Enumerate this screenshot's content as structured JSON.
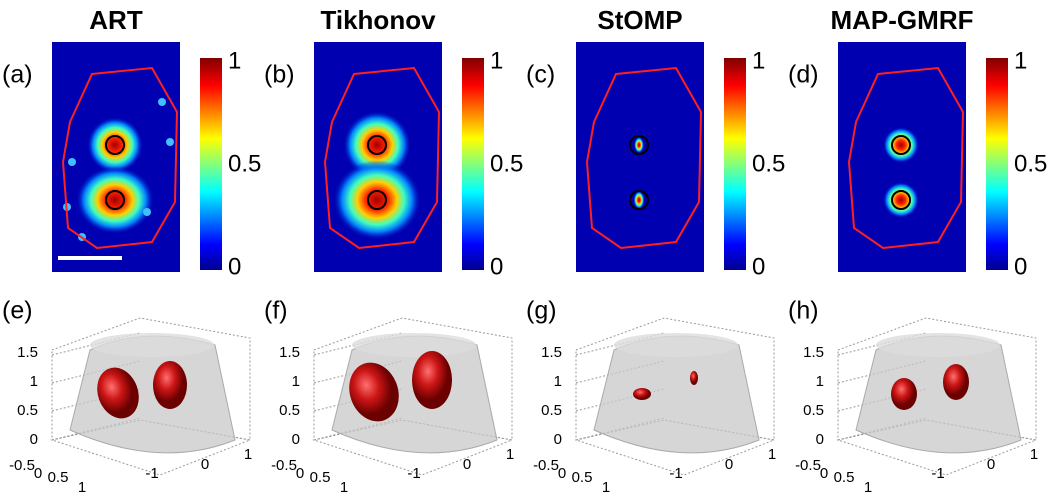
{
  "panels": [
    {
      "title": "ART",
      "image_label": "(a)",
      "surface_label": "(e)"
    },
    {
      "title": "Tikhonov",
      "image_label": "(b)",
      "surface_label": "(f)"
    },
    {
      "title": "StOMP",
      "image_label": "(c)",
      "surface_label": "(g)"
    },
    {
      "title": "MAP-GMRF",
      "image_label": "(d)",
      "surface_label": "(h)"
    }
  ],
  "colorbar_ticks": [
    "1",
    "0.5",
    "0"
  ],
  "z_ticks": [
    "1.5",
    "1",
    "0.5",
    "0"
  ],
  "x_ticks": [
    "-0.5",
    "0",
    "0.5",
    "1"
  ],
  "y_ticks": [
    "-1",
    "0",
    "1"
  ]
}
